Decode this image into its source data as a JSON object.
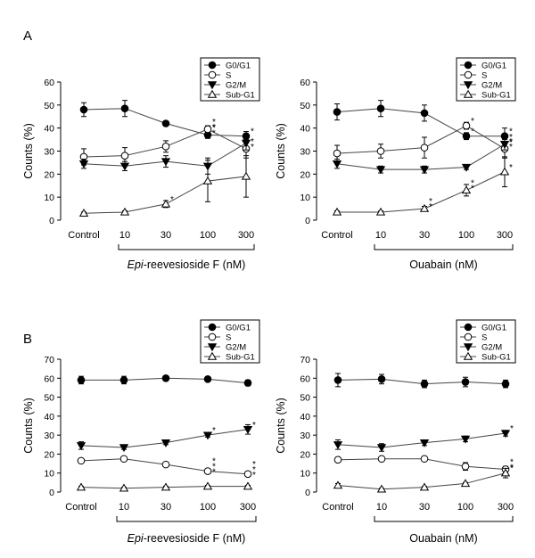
{
  "figure": {
    "panel_labels": [
      "A",
      "B"
    ]
  },
  "chart_data": [
    {
      "type": "line",
      "panel": "A",
      "categories": [
        "Control",
        "10",
        "30",
        "100",
        "300"
      ],
      "xlabel_italic": "Epi",
      "xlabel_rest": "-reevesioside F (nM)",
      "ylabel": "Counts (%)",
      "ylim": [
        0,
        60
      ],
      "yticks": [
        0,
        10,
        20,
        30,
        40,
        50,
        60
      ],
      "legend_position": "top-right",
      "series": [
        {
          "name": "G0/G1",
          "marker": "circle-filled",
          "values": [
            48,
            48.5,
            42,
            37,
            36.5
          ],
          "errors": [
            3,
            3.5,
            1,
            1.5,
            2
          ],
          "stars": [
            "",
            "",
            "",
            "**",
            "*"
          ]
        },
        {
          "name": "S",
          "marker": "circle-open",
          "values": [
            27.5,
            28,
            32,
            39.5,
            31
          ],
          "errors": [
            3.5,
            3.5,
            2.5,
            1.5,
            4
          ],
          "stars": [
            "",
            "",
            "",
            "**",
            "**"
          ]
        },
        {
          "name": "G2/M",
          "marker": "triangle-down-filled",
          "values": [
            24.5,
            23.5,
            25.5,
            23.5,
            33.5
          ],
          "errors": [
            2,
            2,
            2.5,
            3.5,
            3
          ],
          "stars": [
            "",
            "",
            "",
            "",
            ""
          ]
        },
        {
          "name": "Sub-G1",
          "marker": "triangle-up-open",
          "values": [
            3,
            3.5,
            7,
            17,
            19
          ],
          "errors": [
            0.5,
            0.5,
            1.5,
            9,
            9
          ],
          "stars": [
            "",
            "",
            "*",
            "",
            ""
          ]
        }
      ]
    },
    {
      "type": "line",
      "panel": "A",
      "categories": [
        "Control",
        "10",
        "30",
        "100",
        "300"
      ],
      "xlabel_italic": "",
      "xlabel_rest": "Ouabain (nM)",
      "ylabel": "Counts (%)",
      "ylim": [
        0,
        60
      ],
      "yticks": [
        0,
        10,
        20,
        30,
        40,
        50,
        60
      ],
      "legend_position": "top-right",
      "series": [
        {
          "name": "G0/G1",
          "marker": "circle-filled",
          "values": [
            47,
            48.5,
            46.5,
            36.5,
            36.5
          ],
          "errors": [
            3.5,
            3.5,
            3.5,
            1.5,
            3.5
          ],
          "stars": [
            "",
            "",
            "",
            "*",
            "*"
          ]
        },
        {
          "name": "S",
          "marker": "circle-open",
          "values": [
            29,
            30,
            31.5,
            41,
            31
          ],
          "errors": [
            3.5,
            3,
            4.5,
            1.5,
            4
          ],
          "stars": [
            "",
            "",
            "",
            "*",
            "**"
          ]
        },
        {
          "name": "G2/M",
          "marker": "triangle-down-filled",
          "values": [
            24.5,
            22,
            22,
            23,
            33
          ],
          "errors": [
            2,
            1.5,
            1.5,
            1,
            2.5
          ],
          "stars": [
            "",
            "",
            "",
            "",
            "**"
          ]
        },
        {
          "name": "Sub-G1",
          "marker": "triangle-up-open",
          "values": [
            3.5,
            3.5,
            5,
            13,
            21
          ],
          "errors": [
            0.5,
            0.5,
            1,
            2.5,
            6.5
          ],
          "stars": [
            "",
            "",
            "**",
            "**",
            "*"
          ]
        }
      ]
    },
    {
      "type": "line",
      "panel": "B",
      "categories": [
        "Control",
        "10",
        "30",
        "100",
        "300"
      ],
      "xlabel_italic": "Epi",
      "xlabel_rest": "-reevesioside F (nM)",
      "ylabel": "Counts (%)",
      "ylim": [
        0,
        70
      ],
      "yticks": [
        0,
        10,
        20,
        30,
        40,
        50,
        60,
        70
      ],
      "legend_position": "top-right",
      "series": [
        {
          "name": "G0/G1",
          "marker": "circle-filled",
          "values": [
            59,
            59,
            60,
            59.5,
            57.5
          ],
          "errors": [
            2,
            2,
            1,
            1,
            1.5
          ],
          "stars": [
            "",
            "",
            "",
            "",
            ""
          ]
        },
        {
          "name": "S",
          "marker": "circle-open",
          "values": [
            16.5,
            17.5,
            14.5,
            11,
            9.5
          ],
          "errors": [
            1,
            1,
            1,
            1,
            1
          ],
          "stars": [
            "",
            "",
            "",
            "***",
            "***"
          ]
        },
        {
          "name": "G2/M",
          "marker": "triangle-down-filled",
          "values": [
            24.5,
            23.5,
            26,
            30,
            33
          ],
          "errors": [
            2,
            1,
            1,
            1,
            2.5
          ],
          "stars": [
            "",
            "",
            "",
            "*",
            "*"
          ]
        },
        {
          "name": "Sub-G1",
          "marker": "triangle-up-open",
          "values": [
            2.5,
            2,
            2.5,
            3,
            3
          ],
          "errors": [
            0.5,
            0.5,
            0.5,
            0.5,
            0.5
          ],
          "stars": [
            "",
            "",
            "",
            "",
            ""
          ]
        }
      ]
    },
    {
      "type": "line",
      "panel": "B",
      "categories": [
        "Control",
        "10",
        "30",
        "100",
        "300"
      ],
      "xlabel_italic": "",
      "xlabel_rest": "Ouabain (nM)",
      "ylabel": "Counts (%)",
      "ylim": [
        0,
        70
      ],
      "yticks": [
        0,
        10,
        20,
        30,
        40,
        50,
        60,
        70
      ],
      "legend_position": "top-right",
      "series": [
        {
          "name": "G0/G1",
          "marker": "circle-filled",
          "values": [
            59,
            59.5,
            57,
            58,
            57
          ],
          "errors": [
            3.5,
            2.5,
            2,
            2.5,
            2
          ],
          "stars": [
            "",
            "",
            "",
            "",
            ""
          ]
        },
        {
          "name": "S",
          "marker": "circle-open",
          "values": [
            17,
            17.5,
            17.5,
            13.5,
            12
          ],
          "errors": [
            1,
            1,
            1,
            2,
            1.5
          ],
          "stars": [
            "",
            "",
            "",
            "",
            "**"
          ]
        },
        {
          "name": "G2/M",
          "marker": "triangle-down-filled",
          "values": [
            25,
            23.5,
            26,
            28,
            31
          ],
          "errors": [
            2.5,
            2,
            1.5,
            1.5,
            1.5
          ],
          "stars": [
            "",
            "",
            "",
            "",
            "*"
          ]
        },
        {
          "name": "Sub-G1",
          "marker": "triangle-up-open",
          "values": [
            3.5,
            1.5,
            2.5,
            4.5,
            10
          ],
          "errors": [
            1,
            0.5,
            0.5,
            0.5,
            2.5
          ],
          "stars": [
            "",
            "",
            "",
            "",
            "*"
          ]
        }
      ]
    }
  ]
}
